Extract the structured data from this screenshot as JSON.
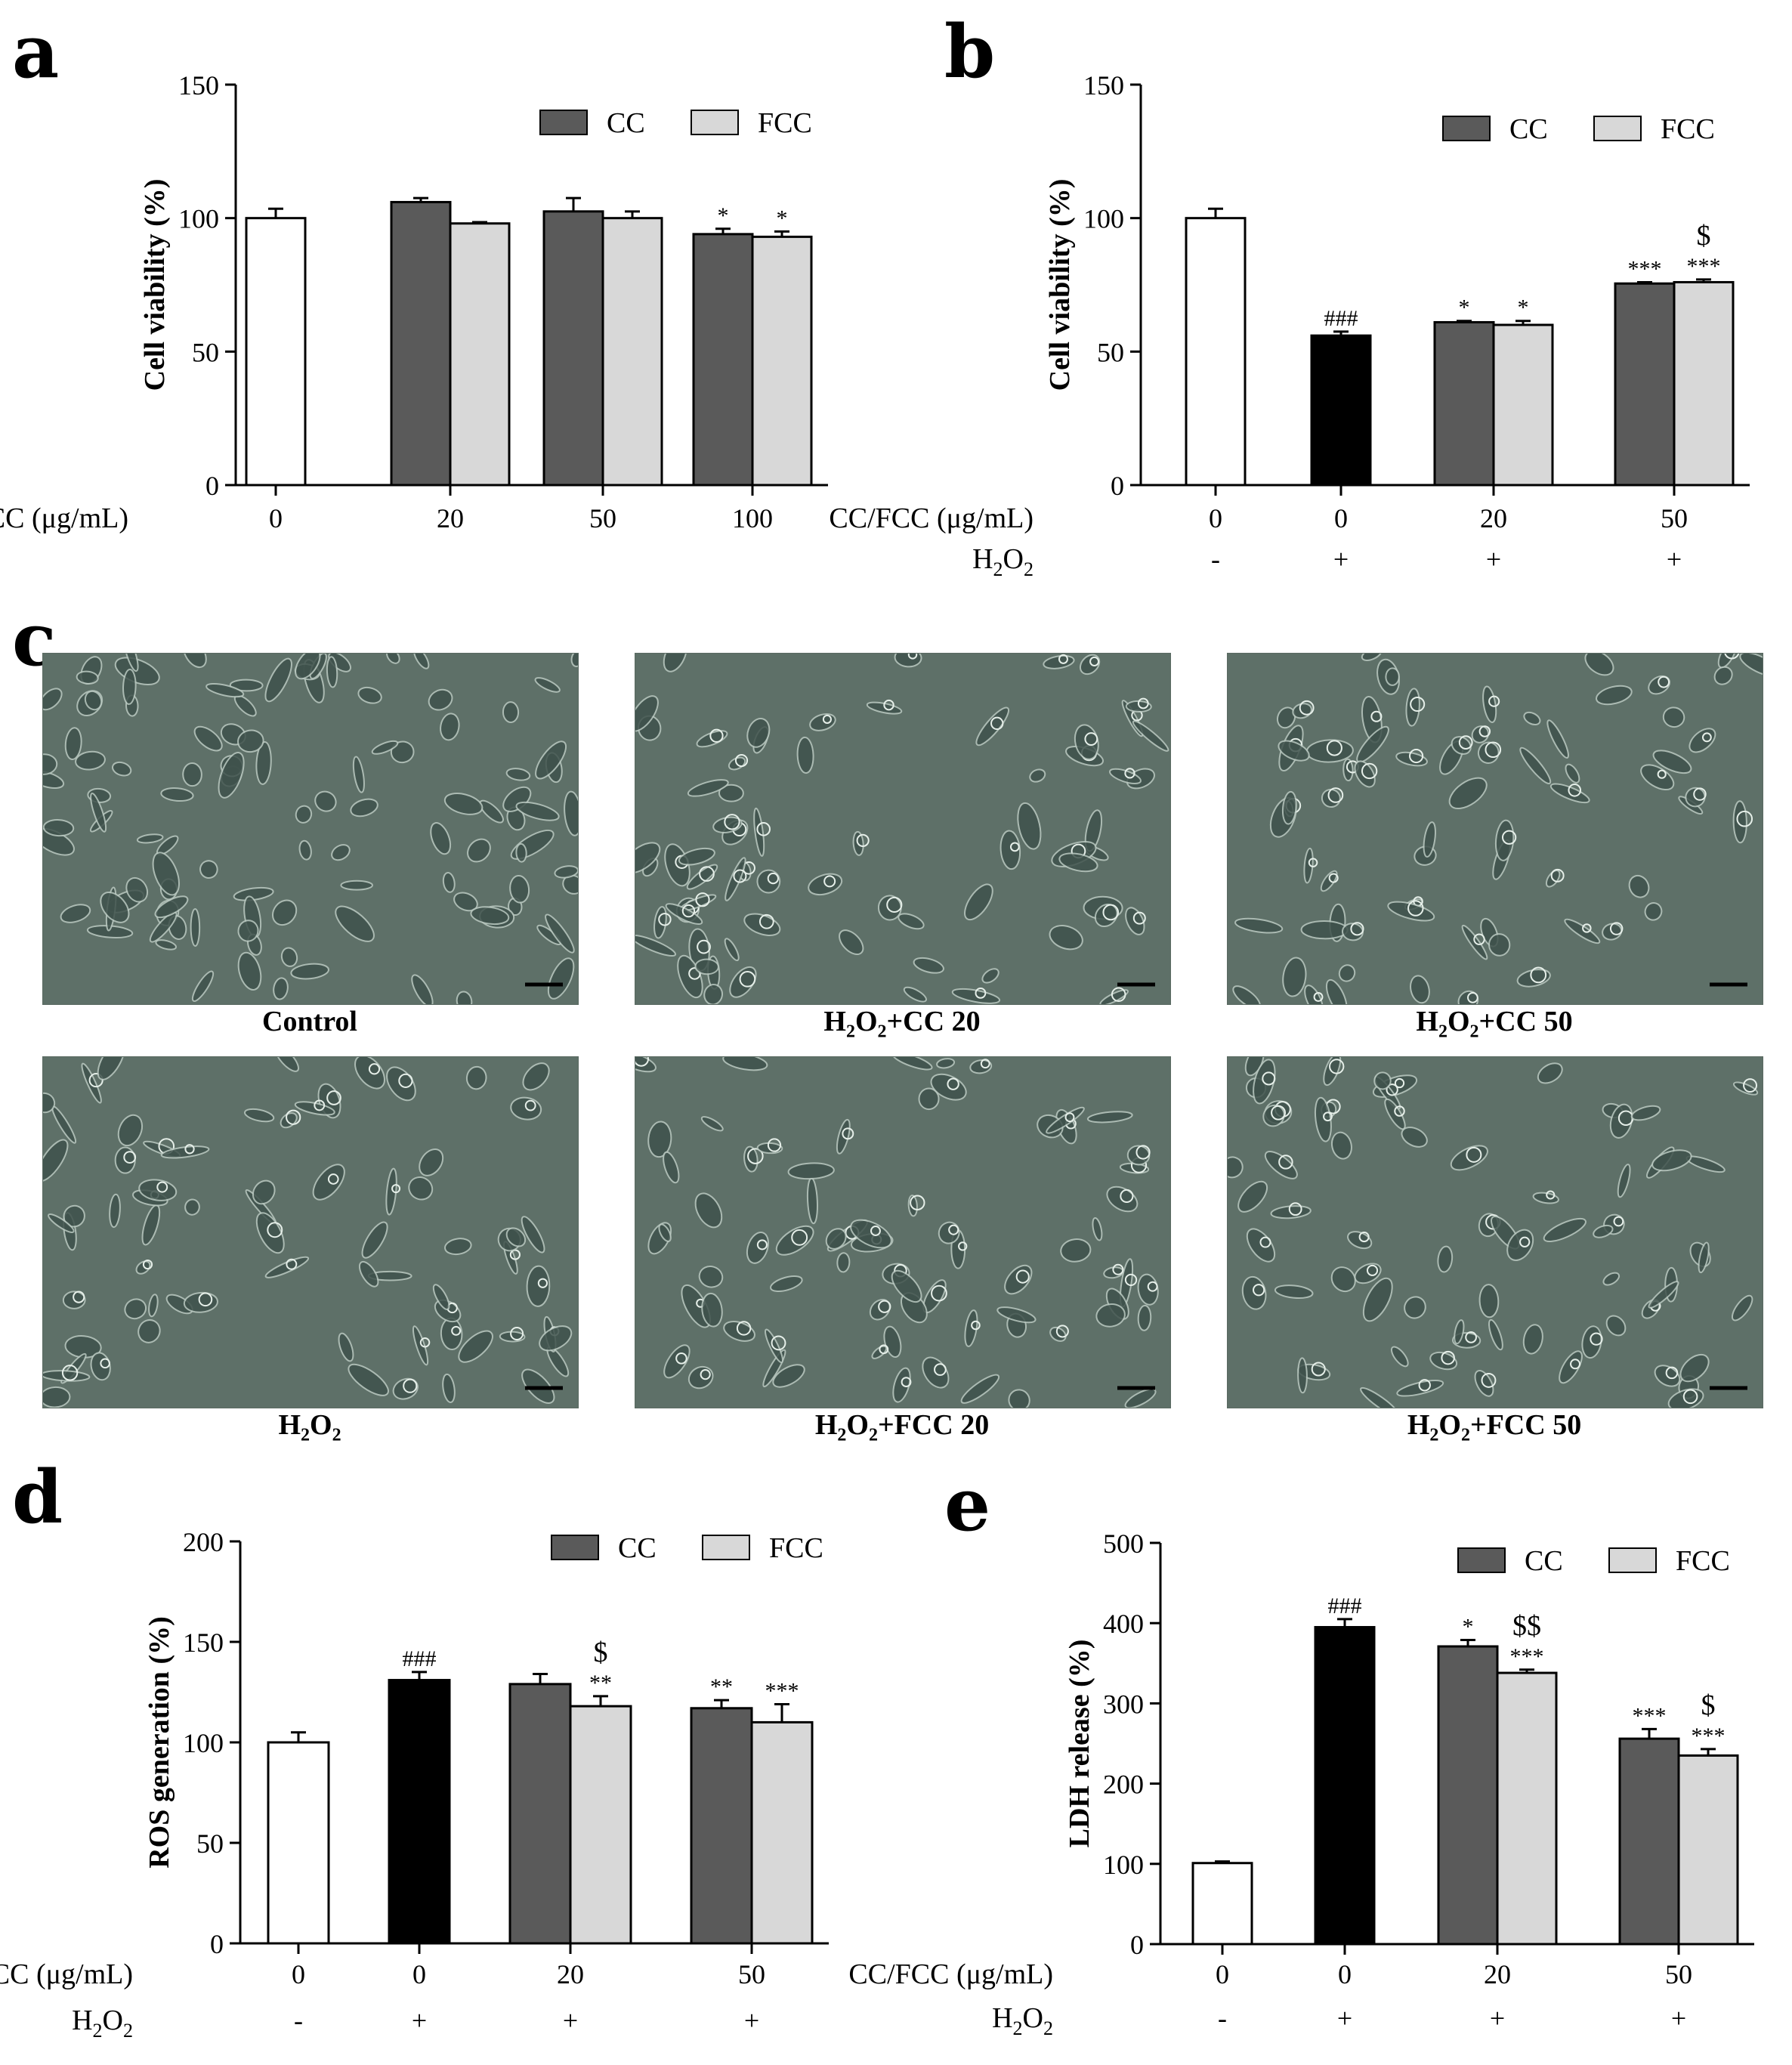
{
  "colors": {
    "cc": "#5a5a5a",
    "fcc": "#d8d8d8",
    "control": "#ffffff",
    "h2o2": "#000000",
    "micro_bg": "#5e7068"
  },
  "panels": {
    "a": "a",
    "b": "b",
    "c": "c",
    "d": "d",
    "e": "e"
  },
  "legend": {
    "cc": "CC",
    "fcc": "FCC"
  },
  "row_labels": {
    "dose": "CC/FCC (μg/mL)",
    "h2o2_main": "H",
    "h2o2_sub2": "2",
    "h2o2_o": "O",
    "h2o2_sub": "2"
  },
  "chart_data": [
    {
      "id": "a",
      "type": "bar",
      "ylabel": "Cell viability (%)",
      "ylim": [
        0,
        150
      ],
      "yticks": [
        0,
        50,
        100,
        150
      ],
      "groups": [
        {
          "dose": "0",
          "bars": [
            {
              "kind": "control",
              "value": 100,
              "err": 3.5,
              "label": ""
            }
          ]
        },
        {
          "dose": "20",
          "bars": [
            {
              "kind": "cc",
              "value": 106,
              "err": 1.5,
              "label": ""
            },
            {
              "kind": "fcc",
              "value": 98,
              "err": 0.5,
              "label": ""
            }
          ]
        },
        {
          "dose": "50",
          "bars": [
            {
              "kind": "cc",
              "value": 102.5,
              "err": 5,
              "label": ""
            },
            {
              "kind": "fcc",
              "value": 100,
              "err": 2.5,
              "label": ""
            }
          ]
        },
        {
          "dose": "100",
          "bars": [
            {
              "kind": "cc",
              "value": 94,
              "err": 2,
              "label": "*"
            },
            {
              "kind": "fcc",
              "value": 93,
              "err": 2,
              "label": "*"
            }
          ]
        }
      ]
    },
    {
      "id": "b",
      "type": "bar",
      "ylabel": "Cell viability (%)",
      "ylim": [
        0,
        150
      ],
      "yticks": [
        0,
        50,
        100,
        150
      ],
      "groups": [
        {
          "dose": "0",
          "h2o2": "-",
          "bars": [
            {
              "kind": "control",
              "value": 100,
              "err": 3.5,
              "label": ""
            }
          ]
        },
        {
          "dose": "0",
          "h2o2": "+",
          "bars": [
            {
              "kind": "h2o2",
              "value": 56,
              "err": 1.5,
              "label": "###"
            }
          ]
        },
        {
          "dose": "20",
          "h2o2": "+",
          "bars": [
            {
              "kind": "cc",
              "value": 61,
              "err": 0.5,
              "label": "*"
            },
            {
              "kind": "fcc",
              "value": 60,
              "err": 1.5,
              "label": "*"
            }
          ]
        },
        {
          "dose": "50",
          "h2o2": "+",
          "bars": [
            {
              "kind": "cc",
              "value": 75.5,
              "err": 0.5,
              "label": "***"
            },
            {
              "kind": "fcc",
              "value": 76,
              "err": 1,
              "label": "***",
              "label2": "$"
            }
          ]
        }
      ]
    },
    {
      "id": "d",
      "type": "bar",
      "ylabel": "ROS generation (%)",
      "ylim": [
        0,
        200
      ],
      "yticks": [
        0,
        50,
        100,
        150,
        200
      ],
      "groups": [
        {
          "dose": "0",
          "h2o2": "-",
          "bars": [
            {
              "kind": "control",
              "value": 100,
              "err": 5,
              "label": ""
            }
          ]
        },
        {
          "dose": "0",
          "h2o2": "+",
          "bars": [
            {
              "kind": "h2o2",
              "value": 131,
              "err": 4,
              "label": "###"
            }
          ]
        },
        {
          "dose": "20",
          "h2o2": "+",
          "bars": [
            {
              "kind": "cc",
              "value": 129,
              "err": 5,
              "label": ""
            },
            {
              "kind": "fcc",
              "value": 118,
              "err": 5,
              "label": "**",
              "label2": "$"
            }
          ]
        },
        {
          "dose": "50",
          "h2o2": "+",
          "bars": [
            {
              "kind": "cc",
              "value": 117,
              "err": 4,
              "label": "**"
            },
            {
              "kind": "fcc",
              "value": 110,
              "err": 9,
              "label": "***"
            }
          ]
        }
      ]
    },
    {
      "id": "e",
      "type": "bar",
      "ylabel": "LDH release (%)",
      "ylim": [
        0,
        500
      ],
      "yticks": [
        0,
        100,
        200,
        300,
        400,
        500
      ],
      "groups": [
        {
          "dose": "0",
          "h2o2": "-",
          "bars": [
            {
              "kind": "control",
              "value": 101,
              "err": 2,
              "label": ""
            }
          ]
        },
        {
          "dose": "0",
          "h2o2": "+",
          "bars": [
            {
              "kind": "h2o2",
              "value": 395,
              "err": 10,
              "label": "###"
            }
          ]
        },
        {
          "dose": "20",
          "h2o2": "+",
          "bars": [
            {
              "kind": "cc",
              "value": 371,
              "err": 8,
              "label": "*"
            },
            {
              "kind": "fcc",
              "value": 338,
              "err": 4,
              "label": "***",
              "label2": "$$"
            }
          ]
        },
        {
          "dose": "50",
          "h2o2": "+",
          "bars": [
            {
              "kind": "cc",
              "value": 256,
              "err": 12,
              "label": "***"
            },
            {
              "kind": "fcc",
              "value": 235,
              "err": 8,
              "label": "***",
              "label2": "$"
            }
          ]
        }
      ]
    }
  ],
  "micrographs": [
    {
      "id": "control",
      "caption": "Control",
      "sub_html": false
    },
    {
      "id": "cc20",
      "caption_pre": "H",
      "caption_s1": "2",
      "caption_mid": "O",
      "caption_s2": "2",
      "caption_post": "+CC 20"
    },
    {
      "id": "cc50",
      "caption_pre": "H",
      "caption_s1": "2",
      "caption_mid": "O",
      "caption_s2": "2",
      "caption_post": "+CC 50"
    },
    {
      "id": "h2o2",
      "caption_pre": "H",
      "caption_s1": "2",
      "caption_mid": "O",
      "caption_s2": "2",
      "caption_post": ""
    },
    {
      "id": "fcc20",
      "caption_pre": "H",
      "caption_s1": "2",
      "caption_mid": "O",
      "caption_s2": "2",
      "caption_post": "+FCC 20"
    },
    {
      "id": "fcc50",
      "caption_pre": "H",
      "caption_s1": "2",
      "caption_mid": "O",
      "caption_s2": "2",
      "caption_post": "+FCC 50"
    }
  ]
}
